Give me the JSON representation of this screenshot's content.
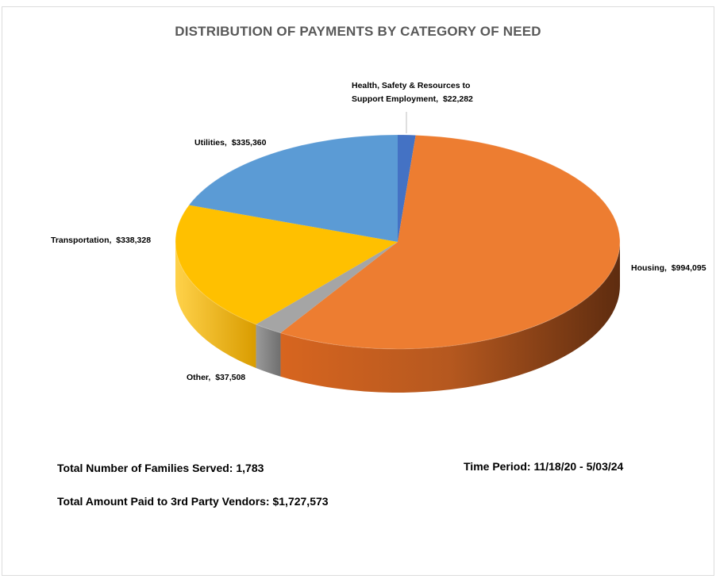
{
  "chart_data": {
    "type": "pie",
    "title": "DISTRIBUTION OF PAYMENTS BY CATEGORY OF NEED",
    "slices": [
      {
        "name": "Health, Safety & Resources to Support Employment",
        "label_line1": "Health, Safety & Resources to",
        "label_line2": "Support Employment,",
        "value_label": "$22,282",
        "value": 22282,
        "color": "#4472C4"
      },
      {
        "name": "Housing",
        "label_line1": "Housing,",
        "value_label": "$994,095",
        "value": 994095,
        "color": "#ED7D31"
      },
      {
        "name": "Other",
        "label_line1": "Other,",
        "value_label": "$37,508",
        "value": 37508,
        "color": "#A5A5A5"
      },
      {
        "name": "Transportation",
        "label_line1": "Transportation,",
        "value_label": "$338,328",
        "value": 338328,
        "color": "#FFC000"
      },
      {
        "name": "Utilities",
        "label_line1": "Utilities,",
        "value_label": "$335,360",
        "value": 335360,
        "color": "#5B9BD5"
      }
    ],
    "style": "3d"
  },
  "stats": {
    "families_label": "Total Number of Families Served:",
    "families_value": "1,783",
    "period_label": "Time Period:",
    "period_value": "11/18/20 - 5/03/24",
    "vendors_label": "Total Amount Paid to 3rd Party Vendors:",
    "vendors_value": "$1,727,573"
  }
}
